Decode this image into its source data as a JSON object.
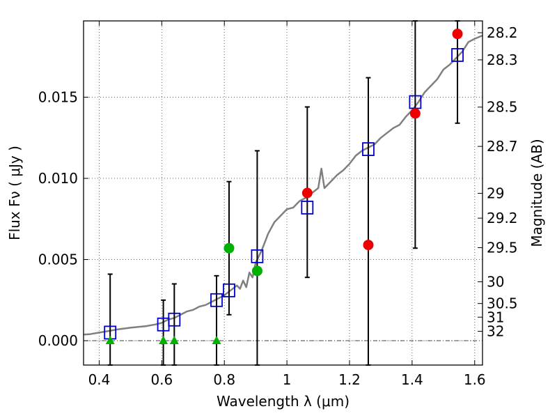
{
  "chart_data": {
    "type": "scatter",
    "title": "",
    "xlabel": "Wavelength  λ (μm)",
    "ylabel": "Flux  Fν  ( μJy )",
    "ylabel_right": "Magnitude (AB)",
    "xlim": [
      0.35,
      1.625
    ],
    "ylim": [
      -0.0015,
      0.0197
    ],
    "x_ticks": [
      0.4,
      0.6,
      0.8,
      1.0,
      1.2,
      1.4,
      1.6
    ],
    "x_tick_labels": [
      "0.4",
      "0.6",
      "0.8",
      "1",
      "1.2",
      "1.4",
      "1.6"
    ],
    "y_ticks": [
      0.0,
      0.005,
      0.01,
      0.015
    ],
    "y_tick_labels": [
      "0.000",
      "0.005",
      "0.010",
      "0.015"
    ],
    "right_ticks": [
      {
        "label": "28.2",
        "flux": 0.01897
      },
      {
        "label": "28.3",
        "flux": 0.0173
      },
      {
        "label": "28.5",
        "flux": 0.01439
      },
      {
        "label": "28.7",
        "flux": 0.01197
      },
      {
        "label": "29",
        "flux": 0.00908
      },
      {
        "label": "29.2",
        "flux": 0.00755
      },
      {
        "label": "29.5",
        "flux": 0.00573
      },
      {
        "label": "30",
        "flux": 0.00363
      },
      {
        "label": "30.5",
        "flux": 0.00229
      },
      {
        "label": "31",
        "flux": 0.00145
      },
      {
        "label": "32",
        "flux": 0.00058
      }
    ],
    "grid": true,
    "zero_line": 0.0,
    "series": [
      {
        "type": "line",
        "color": "#7f7f7f",
        "x": [
          0.35,
          0.37,
          0.4,
          0.43,
          0.46,
          0.5,
          0.55,
          0.58,
          0.6,
          0.62,
          0.64,
          0.66,
          0.68,
          0.7,
          0.72,
          0.74,
          0.76,
          0.78,
          0.8,
          0.82,
          0.84,
          0.85,
          0.86,
          0.87,
          0.88,
          0.89,
          0.9,
          0.92,
          0.94,
          0.96,
          0.98,
          1.0,
          1.02,
          1.04,
          1.06,
          1.08,
          1.1,
          1.11,
          1.12,
          1.14,
          1.16,
          1.18,
          1.2,
          1.22,
          1.24,
          1.26,
          1.28,
          1.3,
          1.32,
          1.34,
          1.36,
          1.38,
          1.4,
          1.42,
          1.44,
          1.46,
          1.48,
          1.5,
          1.52,
          1.54,
          1.56,
          1.58,
          1.6,
          1.625
        ],
        "y": [
          0.00038,
          0.0004,
          0.0005,
          0.0006,
          0.0007,
          0.0008,
          0.0009,
          0.001,
          0.0011,
          0.0013,
          0.0014,
          0.0016,
          0.0018,
          0.0019,
          0.0021,
          0.0022,
          0.0024,
          0.0026,
          0.0028,
          0.0031,
          0.0034,
          0.0032,
          0.0037,
          0.0033,
          0.0042,
          0.0039,
          0.0048,
          0.0056,
          0.0066,
          0.0073,
          0.0077,
          0.0081,
          0.0082,
          0.0086,
          0.0088,
          0.0091,
          0.0094,
          0.0106,
          0.0094,
          0.0098,
          0.0102,
          0.0105,
          0.0109,
          0.0114,
          0.0117,
          0.0119,
          0.0121,
          0.0125,
          0.0128,
          0.0131,
          0.0133,
          0.0138,
          0.0142,
          0.0147,
          0.0153,
          0.0157,
          0.0161,
          0.0167,
          0.017,
          0.0174,
          0.0178,
          0.0184,
          0.0186,
          0.0188
        ]
      },
      {
        "type": "model_photometry",
        "color": "#0000cc",
        "marker": "square",
        "x": [
          0.435,
          0.605,
          0.64,
          0.775,
          0.815,
          0.905,
          1.065,
          1.26,
          1.41,
          1.545
        ],
        "y": [
          0.0005,
          0.001,
          0.0013,
          0.0025,
          0.0031,
          0.0052,
          0.0082,
          0.0118,
          0.0147,
          0.0176
        ]
      },
      {
        "type": "upper_limits",
        "color": "#00b000",
        "marker": "triangle",
        "x": [
          0.435,
          0.605,
          0.64,
          0.775
        ],
        "y": [
          0.0,
          0.0,
          0.0,
          0.0
        ]
      },
      {
        "type": "detections_green",
        "color": "#00b000",
        "marker": "circle",
        "x": [
          0.815,
          0.905
        ],
        "y": [
          0.0057,
          0.0043
        ]
      },
      {
        "type": "detections_red",
        "color": "#ee0000",
        "marker": "circle",
        "x": [
          1.065,
          1.26,
          1.41,
          1.545
        ],
        "y": [
          0.0091,
          0.0059,
          0.014,
          0.0189
        ]
      }
    ],
    "error_bars": [
      {
        "x": 0.435,
        "low": -0.0015,
        "high": 0.0041
      },
      {
        "x": 0.605,
        "low": -0.0015,
        "high": 0.0025
      },
      {
        "x": 0.64,
        "low": -0.0015,
        "high": 0.0035
      },
      {
        "x": 0.775,
        "low": -0.0015,
        "high": 0.004
      },
      {
        "x": 0.815,
        "low": 0.0016,
        "high": 0.0098
      },
      {
        "x": 0.905,
        "low": -0.0015,
        "high": 0.0117
      },
      {
        "x": 1.065,
        "low": 0.0039,
        "high": 0.0144
      },
      {
        "x": 1.26,
        "low": -0.0015,
        "high": 0.0162
      },
      {
        "x": 1.41,
        "low": 0.0057,
        "high": 0.0197
      },
      {
        "x": 1.545,
        "low": 0.0134,
        "high": 0.0197
      }
    ]
  }
}
